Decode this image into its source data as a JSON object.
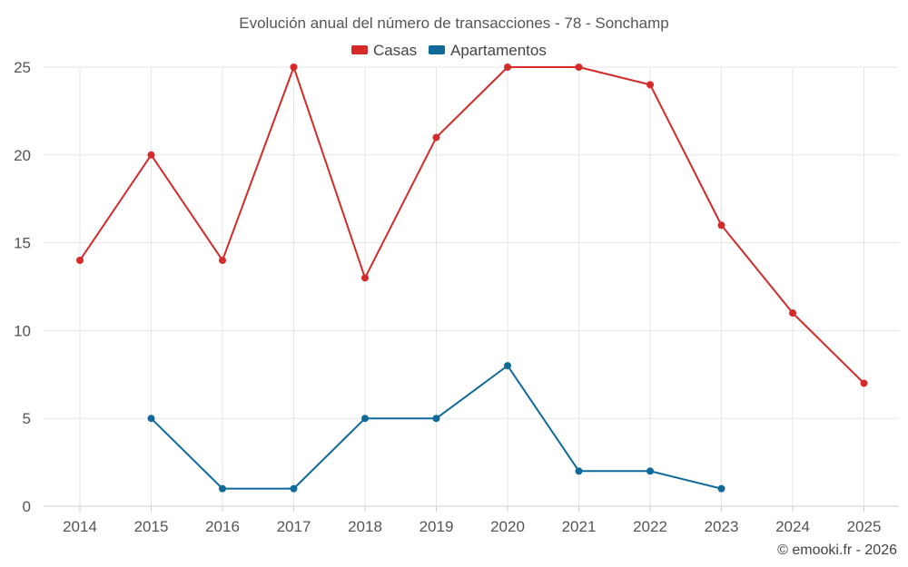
{
  "chart_data": {
    "type": "line",
    "title": "Evolución anual del número de transacciones - 78 - Sonchamp",
    "categories": [
      "2014",
      "2015",
      "2016",
      "2017",
      "2018",
      "2019",
      "2020",
      "2021",
      "2022",
      "2023",
      "2024",
      "2025"
    ],
    "series": [
      {
        "name": "Casas",
        "color": "#d42a2a",
        "values": [
          14,
          20,
          14,
          25,
          13,
          21,
          25,
          25,
          24,
          16,
          11,
          7
        ]
      },
      {
        "name": "Apartamentos",
        "color": "#0f6a9a",
        "values": [
          null,
          5,
          1,
          1,
          5,
          5,
          8,
          2,
          2,
          1,
          null,
          null
        ]
      }
    ],
    "y_ticks": [
      0,
      5,
      10,
      15,
      20,
      25
    ],
    "ylim": [
      0,
      25
    ],
    "xlabel": "",
    "ylabel": "",
    "grid": true,
    "legend_position": "top-center"
  },
  "credit": "© emooki.fr - 2026"
}
